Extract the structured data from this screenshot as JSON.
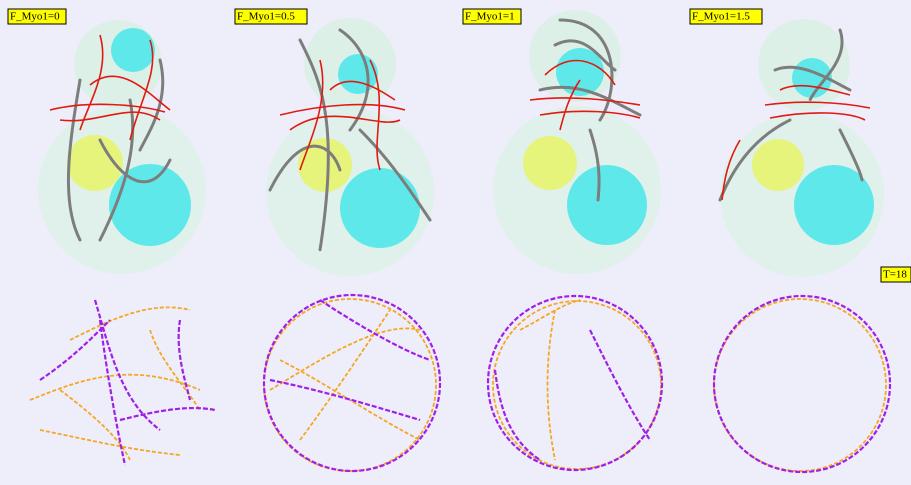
{
  "panels": [
    {
      "label": "F_Myo1=0"
    },
    {
      "label": "F_Myo1=0.5"
    },
    {
      "label": "F_Myo1=1"
    },
    {
      "label": "F_Myo1=1.5"
    }
  ],
  "time_label": "T=18"
}
